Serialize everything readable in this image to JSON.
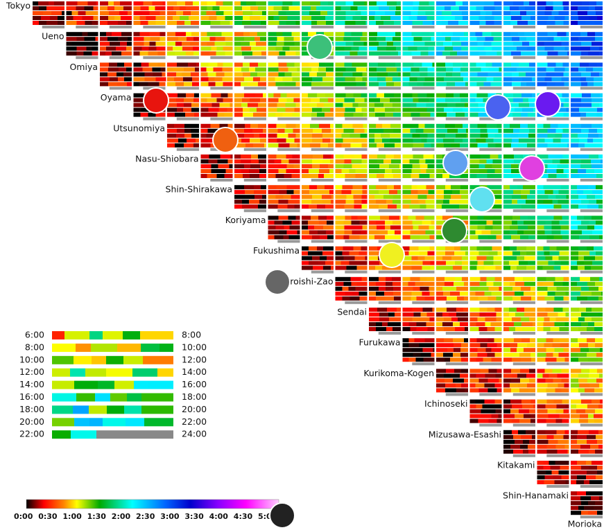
{
  "stations": [
    "Tokyo",
    "Ueno",
    "Omiya",
    "Oyama",
    "Utsunomiya",
    "Nasu-Shiobara",
    "Shin-Shirakawa",
    "Koriyama",
    "Fukushima",
    "Shiroishi-Zao",
    "Sendai",
    "Furukawa",
    "Kurikoma-Kogen",
    "Ichinoseki",
    "Mizusawa-Esashi",
    "Kitakami",
    "Shin-Hanamaki",
    "Morioka"
  ],
  "legend": {
    "rows": [
      {
        "start": "6:00",
        "end": "8:00"
      },
      {
        "start": "8:00",
        "end": "10:00"
      },
      {
        "start": "10:00",
        "end": "12:00"
      },
      {
        "start": "12:00",
        "end": "14:00"
      },
      {
        "start": "14:00",
        "end": "16:00"
      },
      {
        "start": "16:00",
        "end": "18:00"
      },
      {
        "start": "18:00",
        "end": "20:00"
      },
      {
        "start": "20:00",
        "end": "22:00"
      },
      {
        "start": "22:00",
        "end": "24:00"
      }
    ]
  },
  "colorbar": {
    "labels": [
      "0:00",
      "0:30",
      "1:00",
      "1:30",
      "2:00",
      "2:30",
      "3:00",
      "3:30",
      "4:00",
      "4:30",
      "5:00"
    ]
  }
}
